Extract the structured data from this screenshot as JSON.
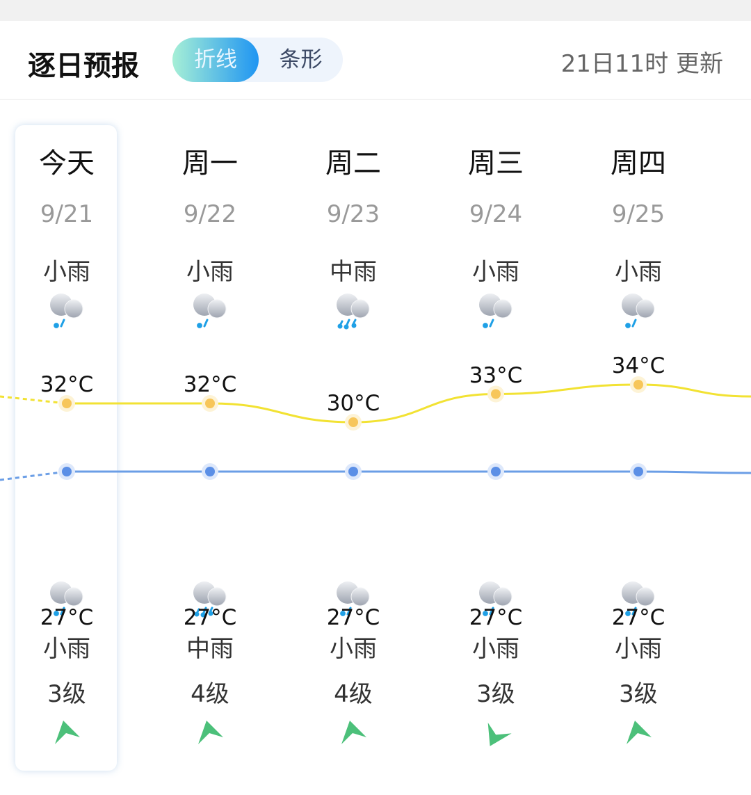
{
  "header": {
    "title": "逐日预报",
    "toggle": {
      "options": [
        "折线",
        "条形"
      ],
      "selected": "折线"
    },
    "updated": "21日11时 更新"
  },
  "colors": {
    "high_line": "#f2e233",
    "low_line": "#6b9ee6",
    "high_dot": "#f7c65a",
    "low_dot": "#5b8fe6",
    "arrow": "#4cc07a",
    "rain": "#1fa0e6"
  },
  "days": [
    {
      "weekday": "今天",
      "date": "9/21",
      "day_weather": "小雨",
      "day_icon": "light-rain",
      "high": "32°C",
      "high_value": 32,
      "low": "27°C",
      "low_value": 27,
      "night_icon": "light-rain",
      "night_weather": "小雨",
      "wind": "3级",
      "wind_arrow_angle_deg": -20
    },
    {
      "weekday": "周一",
      "date": "9/22",
      "day_weather": "小雨",
      "day_icon": "light-rain",
      "high": "32°C",
      "high_value": 32,
      "low": "27°C",
      "low_value": 27,
      "night_icon": "moderate-rain",
      "night_weather": "中雨",
      "wind": "4级",
      "wind_arrow_angle_deg": -20
    },
    {
      "weekday": "周二",
      "date": "9/23",
      "day_weather": "中雨",
      "day_icon": "moderate-rain",
      "high": "30°C",
      "high_value": 30,
      "low": "27°C",
      "low_value": 27,
      "night_icon": "light-rain",
      "night_weather": "小雨",
      "wind": "4级",
      "wind_arrow_angle_deg": -20
    },
    {
      "weekday": "周三",
      "date": "9/24",
      "day_weather": "小雨",
      "day_icon": "light-rain",
      "high": "33°C",
      "high_value": 33,
      "low": "27°C",
      "low_value": 27,
      "night_icon": "light-rain",
      "night_weather": "小雨",
      "wind": "3级",
      "wind_arrow_angle_deg": 200
    },
    {
      "weekday": "周四",
      "date": "9/25",
      "day_weather": "小雨",
      "day_icon": "light-rain",
      "high": "34°C",
      "high_value": 34,
      "low": "27°C",
      "low_value": 27,
      "night_icon": "light-rain",
      "night_weather": "小雨",
      "wind": "3级",
      "wind_arrow_angle_deg": -20
    }
  ]
}
